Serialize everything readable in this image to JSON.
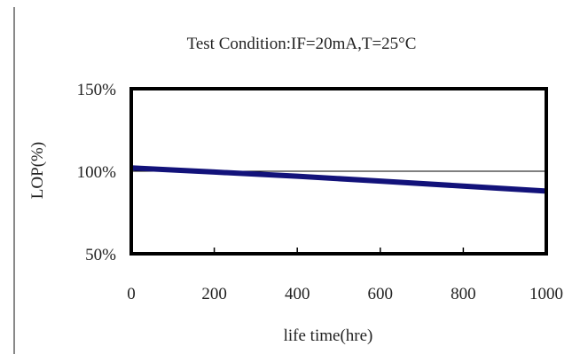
{
  "chart_data": {
    "type": "line",
    "title": "Test Condition:IF=20mA,T=25°C",
    "xlabel": "life time(hre)",
    "ylabel": "LOP(%)",
    "xlim": [
      0,
      1000
    ],
    "ylim": [
      50,
      150
    ],
    "x_ticks": [
      "0",
      "200",
      "400",
      "600",
      "800",
      "1000"
    ],
    "y_ticks": [
      "150%",
      "100%",
      "50%"
    ],
    "reference_line": 100,
    "grid": false,
    "series": [
      {
        "x": [
          0,
          200,
          400,
          600,
          800,
          1000
        ],
        "values": [
          102,
          99.5,
          97,
          94,
          91,
          88
        ],
        "color": "#12127a"
      }
    ]
  }
}
